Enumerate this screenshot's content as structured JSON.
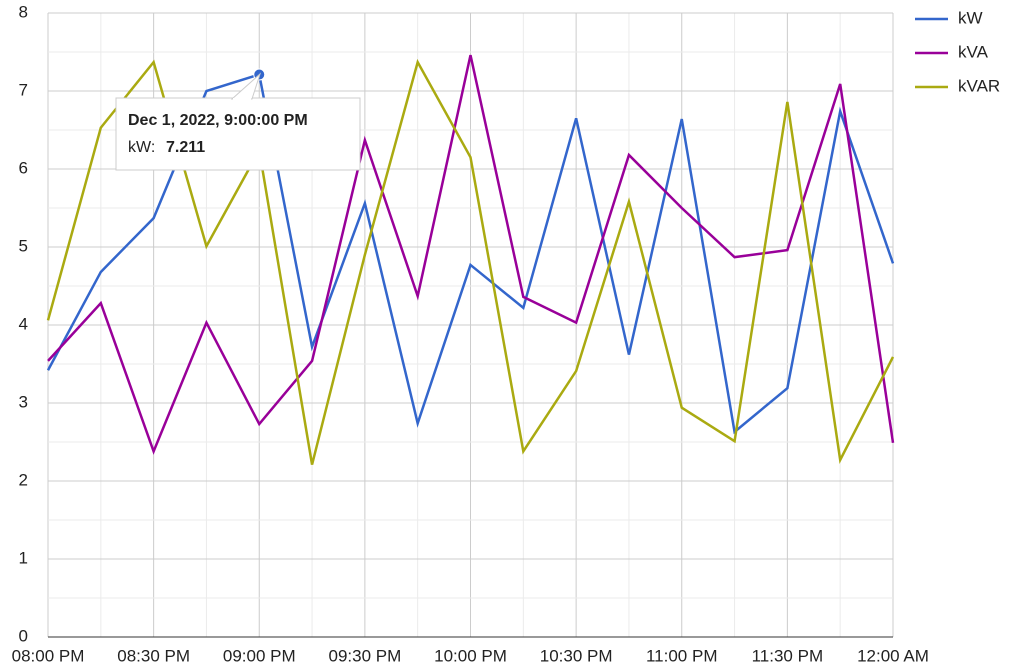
{
  "chart_data": {
    "type": "line",
    "categories": [
      "08:00 PM",
      null,
      "08:30 PM",
      null,
      "09:00 PM",
      null,
      "09:30 PM",
      null,
      "10:00 PM",
      null,
      "10:30 PM",
      null,
      "11:00 PM",
      null,
      "11:30 PM",
      null,
      "12:00 AM"
    ],
    "series": [
      {
        "name": "kW",
        "color": "#3366cc",
        "values": [
          3.42,
          4.68,
          5.37,
          7.0,
          7.211,
          3.72,
          5.56,
          2.74,
          4.77,
          4.22,
          6.65,
          3.62,
          6.64,
          2.63,
          3.19,
          6.74,
          4.79
        ]
      },
      {
        "name": "kVA",
        "color": "#990099",
        "values": [
          3.54,
          4.28,
          2.38,
          4.03,
          2.73,
          3.54,
          6.37,
          4.37,
          7.46,
          4.36,
          4.03,
          6.18,
          5.5,
          4.87,
          4.96,
          7.09,
          2.49
        ]
      },
      {
        "name": "kVAR",
        "color": "#aaaa11",
        "values": [
          4.06,
          6.53,
          7.37,
          5.01,
          6.24,
          2.21,
          4.9,
          7.37,
          6.15,
          2.38,
          3.41,
          5.58,
          2.94,
          2.51,
          6.86,
          2.27,
          3.59
        ]
      }
    ],
    "ylim": [
      0,
      8
    ],
    "yticks": [
      0,
      1,
      2,
      3,
      4,
      5,
      6,
      7,
      8
    ],
    "grid": true,
    "legend": "right",
    "tooltip": {
      "title": "Dec 1, 2022, 9:00:00 PM",
      "label": "kW:",
      "series": 0,
      "index": 4
    }
  }
}
